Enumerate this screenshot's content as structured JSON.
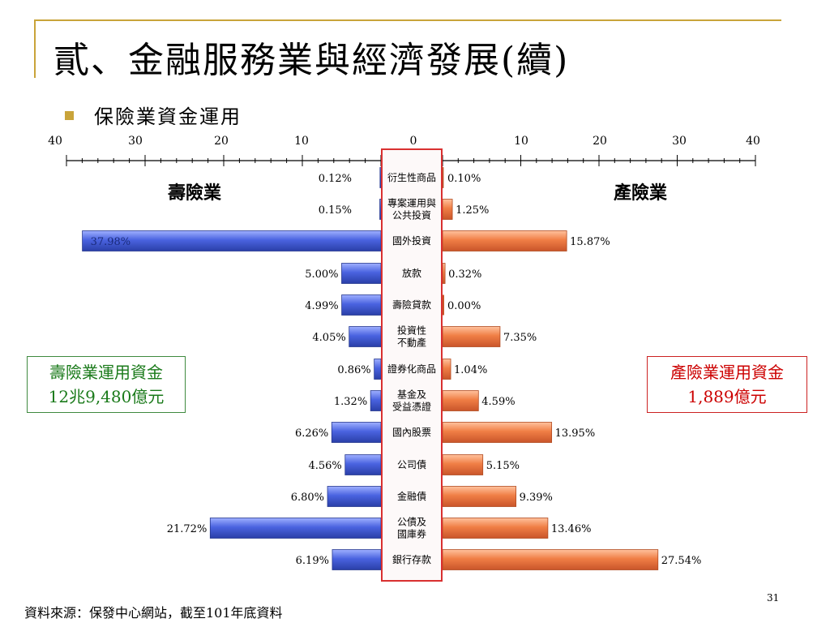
{
  "slide": {
    "title": "貳、金融服務業與經濟發展(續)",
    "subtitle": "保險業資金運用",
    "source": "資料來源：保發中心網站，截至101年底資料",
    "page_number": "31",
    "bullet_color": "#c9a43a",
    "rule_color": "#c9a43a"
  },
  "boxes": {
    "life": {
      "line1": "壽險業運用資金",
      "line2": "12兆9,480億元",
      "color": "#1a7a1a"
    },
    "property": {
      "line1": "產險業運用資金",
      "line2": "1,889億元",
      "color": "#cc0000"
    }
  },
  "chart_data": {
    "type": "bar",
    "orientation": "horizontal-butterfly",
    "axis_ticks": [
      "40",
      "30",
      "20",
      "10",
      "0",
      "10",
      "20",
      "30",
      "40"
    ],
    "xlim": [
      -40,
      40
    ],
    "categories": [
      [
        "衍生性商品"
      ],
      [
        "專案運用與",
        "公共投資"
      ],
      [
        "國外投資"
      ],
      [
        "放款"
      ],
      [
        "壽險貸款"
      ],
      [
        "投資性",
        "不動產"
      ],
      [
        "證券化商品"
      ],
      [
        "基金及",
        "受益憑證"
      ],
      [
        "國內股票"
      ],
      [
        "公司債"
      ],
      [
        "金融債"
      ],
      [
        "公債及",
        "國庫券"
      ],
      [
        "銀行存款"
      ]
    ],
    "series": [
      {
        "name": "壽險業",
        "side": "left",
        "color": "#4a63e0",
        "values": [
          0.12,
          0.15,
          37.98,
          5.0,
          4.99,
          4.05,
          0.86,
          1.32,
          6.26,
          4.56,
          6.8,
          21.72,
          6.19
        ],
        "labels": [
          "0.12%",
          "0.15%",
          "37.98%",
          "5.00%",
          "4.99%",
          "4.05%",
          "0.86%",
          "1.32%",
          "6.26%",
          "4.56%",
          "6.80%",
          "21.72%",
          "6.19%"
        ]
      },
      {
        "name": "產險業",
        "side": "right",
        "color": "#f07e45",
        "values": [
          0.1,
          1.25,
          15.87,
          0.32,
          0.0,
          7.35,
          1.04,
          4.59,
          13.95,
          5.15,
          9.39,
          13.46,
          27.54
        ],
        "labels": [
          "0.10%",
          "1.25%",
          "15.87%",
          "0.32%",
          "0.00%",
          "7.35%",
          "1.04%",
          "4.59%",
          "13.95%",
          "5.15%",
          "9.39%",
          "13.46%",
          "27.54%"
        ]
      }
    ]
  }
}
